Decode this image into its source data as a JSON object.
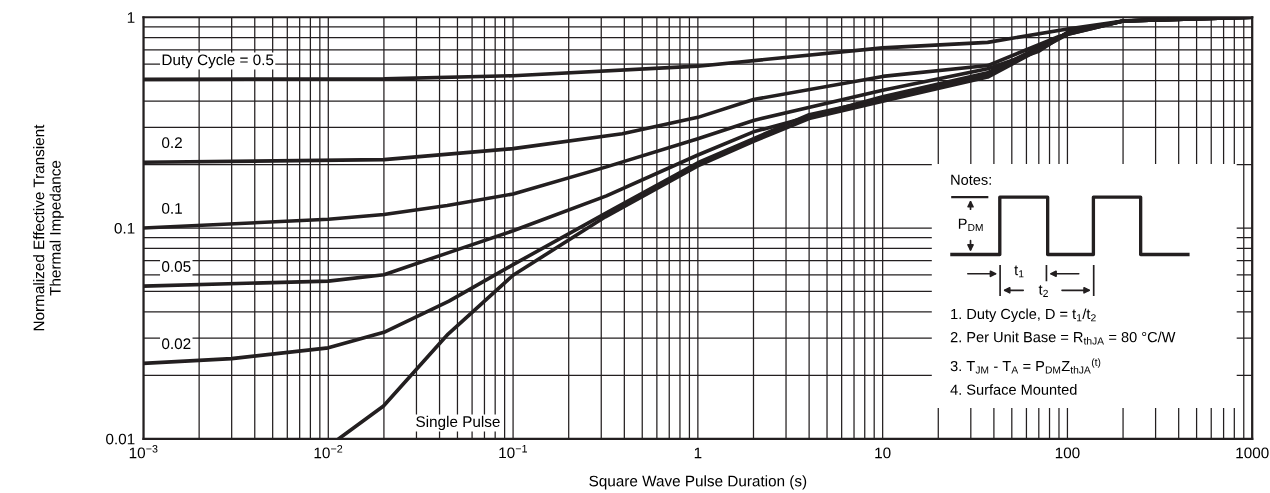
{
  "chart_data": {
    "type": "line",
    "xlabel": "Square Wave Pulse Duration (s)",
    "ylabel": "Normalized Effective Transient\nThermal Impedance",
    "log": "xy",
    "grid": true,
    "legend": false,
    "marker": "none",
    "line_style": "solid",
    "xlim": [
      0.001,
      1000
    ],
    "ylim": [
      0.01,
      1
    ],
    "xticks": [
      {
        "value": 0.001,
        "label": "10$^{−3}$"
      },
      {
        "value": 0.01,
        "label": "10$^{−2}$"
      },
      {
        "value": 0.1,
        "label": "10$^{−1}$"
      },
      1,
      10,
      100,
      1000
    ],
    "yticks": [
      0.01,
      0.1,
      1
    ],
    "series": [
      {
        "name": "Duty Cycle = 0.5",
        "color": "#231f20",
        "x": [
          0.001,
          0.02,
          0.1,
          1,
          10,
          37,
          100,
          200,
          380,
          1000
        ],
        "values": [
          0.507,
          0.51,
          0.528,
          0.586,
          0.716,
          0.76,
          0.88,
          0.96,
          0.99,
          1.0
        ]
      },
      {
        "name": "0.2",
        "color": "#231f20",
        "x": [
          0.001,
          0.02,
          0.1,
          0.39,
          1,
          2,
          10,
          37,
          90,
          200,
          1000
        ],
        "values": [
          0.205,
          0.211,
          0.238,
          0.28,
          0.335,
          0.407,
          0.524,
          0.59,
          0.81,
          0.96,
          1.0
        ]
      },
      {
        "name": "0.1",
        "color": "#231f20",
        "x": [
          0.001,
          0.01,
          0.02,
          0.044,
          0.1,
          0.32,
          1,
          2,
          10,
          37,
          70,
          100,
          200,
          1000
        ],
        "values": [
          0.1,
          0.11,
          0.116,
          0.128,
          0.145,
          0.195,
          0.265,
          0.324,
          0.45,
          0.57,
          0.69,
          0.85,
          0.96,
          1.0
        ]
      },
      {
        "name": "0.05",
        "color": "#231f20",
        "x": [
          0.001,
          0.01,
          0.02,
          0.044,
          0.1,
          0.32,
          1,
          2,
          10,
          37,
          100,
          200,
          1000
        ],
        "values": [
          0.053,
          0.056,
          0.06,
          0.076,
          0.097,
          0.142,
          0.222,
          0.286,
          0.42,
          0.545,
          0.84,
          0.96,
          1.0
        ]
      },
      {
        "name": "0.02",
        "color": "#231f20",
        "x": [
          0.001,
          0.003,
          0.01,
          0.02,
          0.045,
          0.1,
          0.32,
          1,
          4,
          10,
          37,
          100,
          200,
          1000
        ],
        "values": [
          0.0228,
          0.024,
          0.027,
          0.032,
          0.045,
          0.067,
          0.118,
          0.204,
          0.345,
          0.41,
          0.535,
          0.84,
          0.96,
          1.0
        ]
      },
      {
        "name": "Single Pulse",
        "color": "#231f20",
        "x": [
          0.0114,
          0.0199,
          0.0445,
          0.1,
          0.316,
          1,
          2,
          4,
          10,
          37,
          100,
          200,
          1000
        ],
        "values": [
          0.01,
          0.0143,
          0.0314,
          0.0597,
          0.113,
          0.197,
          0.258,
          0.331,
          0.4,
          0.52,
          0.83,
          0.96,
          1.0
        ]
      }
    ],
    "annotations": [
      "Notes:",
      "P$_{DM}$",
      "t$_{1}$",
      "t$_{2}$",
      "1. Duty Cycle, D = t$_{1}$/t$_{2}$",
      "2. Per Unit Base = R$_{thJA}$ = 80 °C/W",
      "3. T$_{JM}$ - T$_{A}$ = P$_{DM}$Z$_{thJA}$$^{(t)}$",
      "4. Surface Mounted"
    ]
  }
}
